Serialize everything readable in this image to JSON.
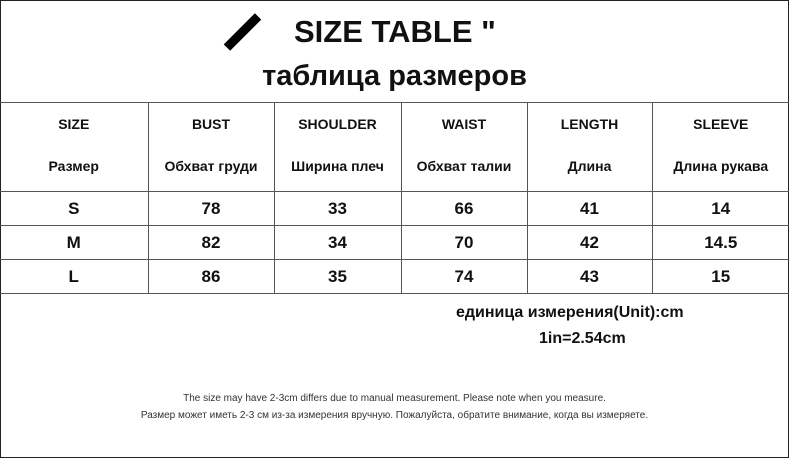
{
  "title": "SIZE TABLE \"",
  "subtitle": "таблица размеров",
  "columns": [
    {
      "en": "SIZE",
      "ru": "Размер"
    },
    {
      "en": "BUST",
      "ru": "Обхват груди"
    },
    {
      "en": "SHOULDER",
      "ru": "Ширина плеч"
    },
    {
      "en": "WAIST",
      "ru": "Обхват талии"
    },
    {
      "en": "LENGTH",
      "ru": "Длина"
    },
    {
      "en": "SLEEVE",
      "ru": "Длина рукава"
    }
  ],
  "rows": [
    [
      "S",
      "78",
      "33",
      "66",
      "41",
      "14"
    ],
    [
      "M",
      "82",
      "34",
      "70",
      "42",
      "14.5"
    ],
    [
      "L",
      "86",
      "35",
      "74",
      "43",
      "15"
    ]
  ],
  "unit_note": "единица измерения(Unit):cm",
  "conversion": "1in=2.54cm",
  "note_en": "The size may have 2-3cm differs due to manual measurement. Please note when you measure.",
  "note_ru": "Размер может иметь 2-3 см из-за измерения вручную. Пожалуйста, обратите внимание, когда вы измеряете."
}
